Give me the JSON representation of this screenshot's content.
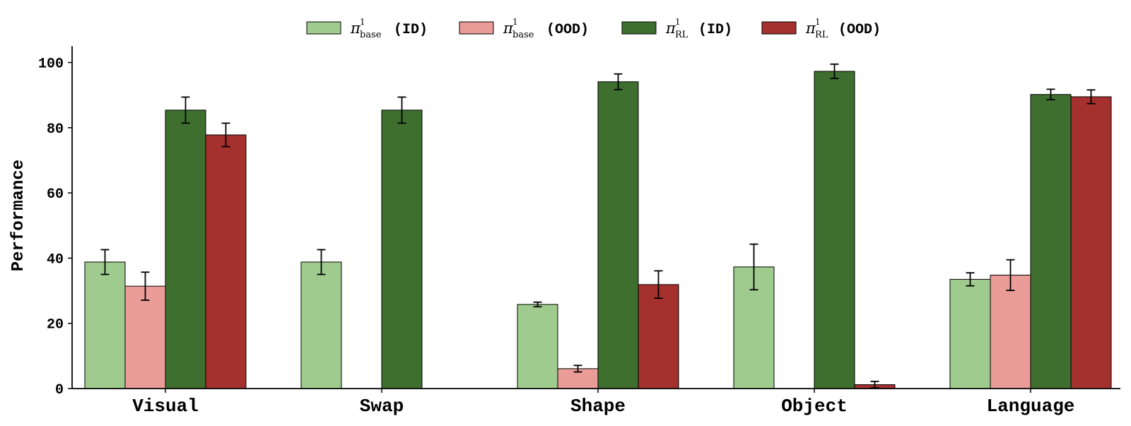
{
  "chart_data": {
    "type": "bar",
    "title": "",
    "xlabel": "",
    "ylabel": "Performance",
    "ylim": [
      0,
      105
    ],
    "yticks": [
      0,
      20,
      40,
      60,
      80,
      100
    ],
    "grid": false,
    "legend_position": "top-center",
    "categories": [
      "Visual",
      "Swap",
      "Shape",
      "Object",
      "Language"
    ],
    "series": [
      {
        "key": "base_id",
        "legend_symbol": "π",
        "legend_sup": "1",
        "legend_sub": "base",
        "legend_tag": "(ID)",
        "color": "#9fcc8e",
        "values": [
          38.8,
          38.8,
          25.8,
          37.3,
          33.5
        ],
        "errors": [
          3.8,
          3.8,
          0.7,
          7.0,
          2.0
        ]
      },
      {
        "key": "base_ood",
        "legend_symbol": "π",
        "legend_sup": "1",
        "legend_sub": "base",
        "legend_tag": "(OOD)",
        "color": "#e99c98",
        "values": [
          31.4,
          0,
          6.1,
          0,
          34.8
        ],
        "errors": [
          4.3,
          0,
          1.0,
          0,
          4.7
        ]
      },
      {
        "key": "rl_id",
        "legend_symbol": "π",
        "legend_sup": "1",
        "legend_sub": "RL",
        "legend_tag": "(ID)",
        "color": "#3e6f2f",
        "values": [
          85.4,
          85.4,
          94.1,
          97.3,
          90.2
        ],
        "errors": [
          4.0,
          4.0,
          2.4,
          2.2,
          1.6
        ]
      },
      {
        "key": "rl_ood",
        "legend_symbol": "π",
        "legend_sup": "1",
        "legend_sub": "RL",
        "legend_tag": "(OOD)",
        "color": "#a5312e",
        "values": [
          77.8,
          0,
          31.9,
          1.2,
          89.5
        ],
        "errors": [
          3.6,
          0,
          4.2,
          1.0,
          2.1
        ]
      }
    ]
  }
}
